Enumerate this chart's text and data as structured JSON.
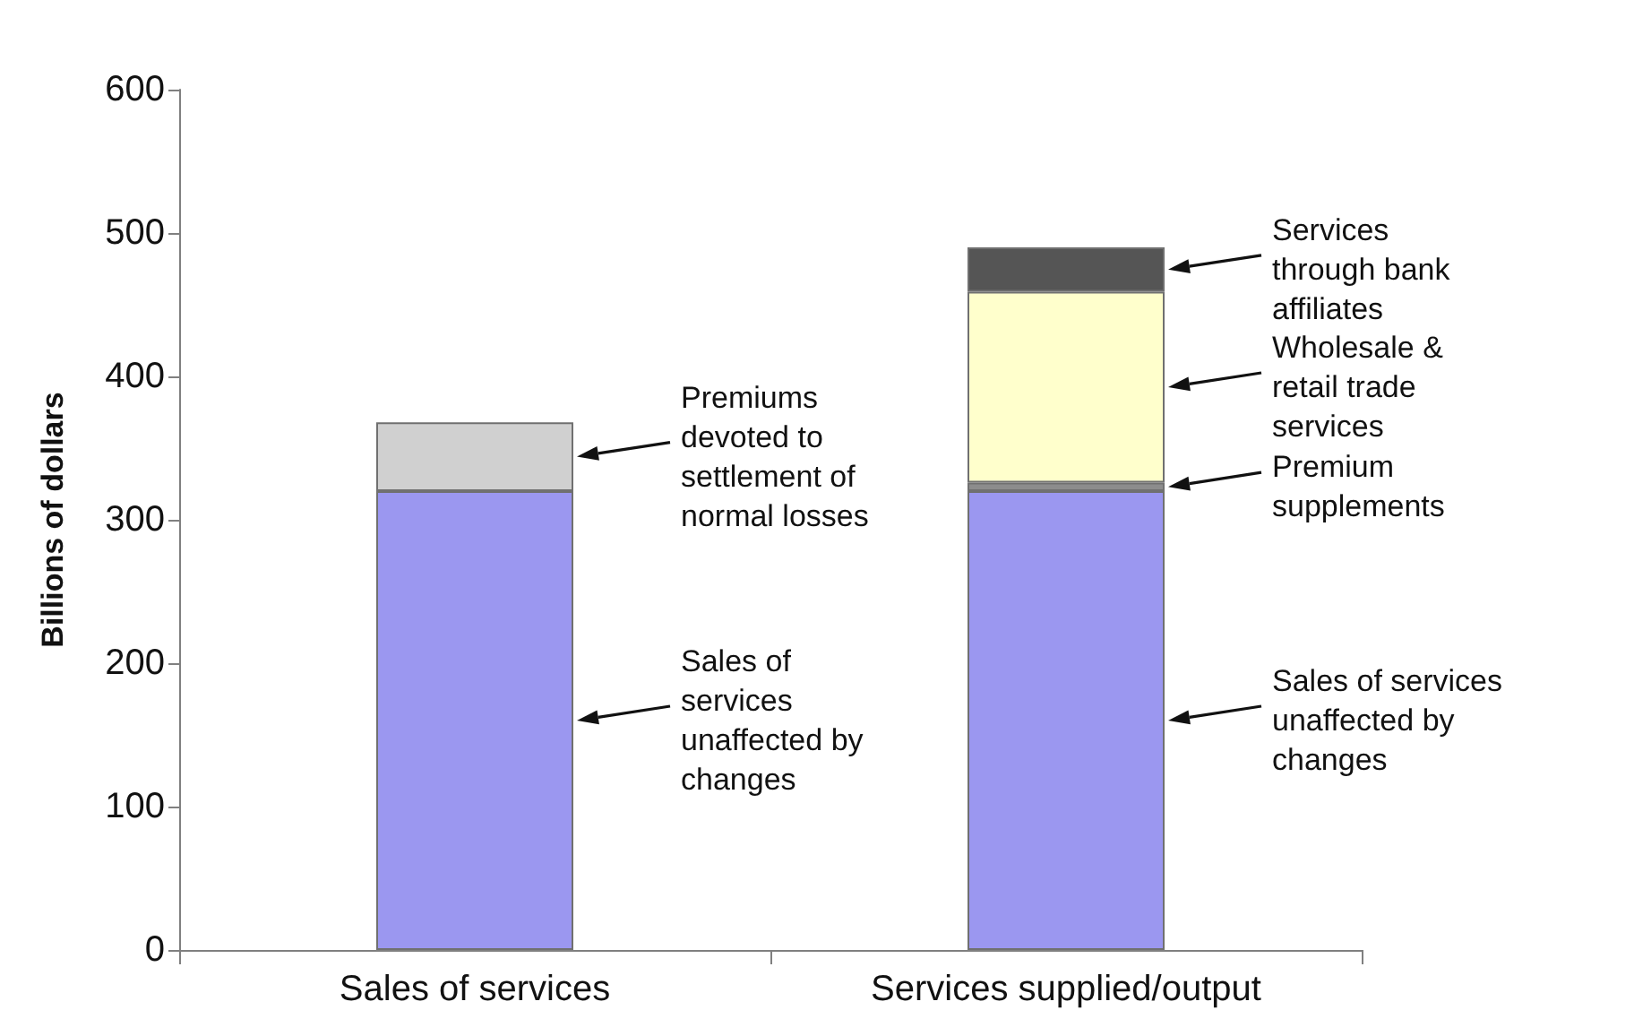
{
  "chart_data": {
    "type": "bar",
    "ylabel": "Billions of dollars",
    "categories": [
      "Sales of services",
      "Services supplied/output"
    ],
    "stacked": true,
    "series": [
      {
        "name": "Sales of\nservices\nunaffected by\nchanges",
        "color": "#9b97f0",
        "values": [
          320,
          null
        ]
      },
      {
        "name": "Sales of services\nunaffected by\nchanges",
        "color": "#9b97f0",
        "values": [
          null,
          320
        ]
      },
      {
        "name": "Premiums\ndevoted to\nsettlement of\nnormal losses",
        "color": "#d0d0d0",
        "values": [
          48,
          null
        ]
      },
      {
        "name": "Premium\nsupplements",
        "color": "#8c8c8c",
        "values": [
          null,
          6
        ]
      },
      {
        "name": "Wholesale &\nretail trade\nservices",
        "color": "#ffffcc",
        "values": [
          null,
          133
        ]
      },
      {
        "name": "Services\nthrough bank\naffiliates",
        "color": "#555555",
        "values": [
          null,
          31
        ]
      }
    ],
    "ylim": [
      0,
      600
    ],
    "yticks": [
      0,
      100,
      200,
      300,
      400,
      500,
      600
    ],
    "grid": false
  }
}
